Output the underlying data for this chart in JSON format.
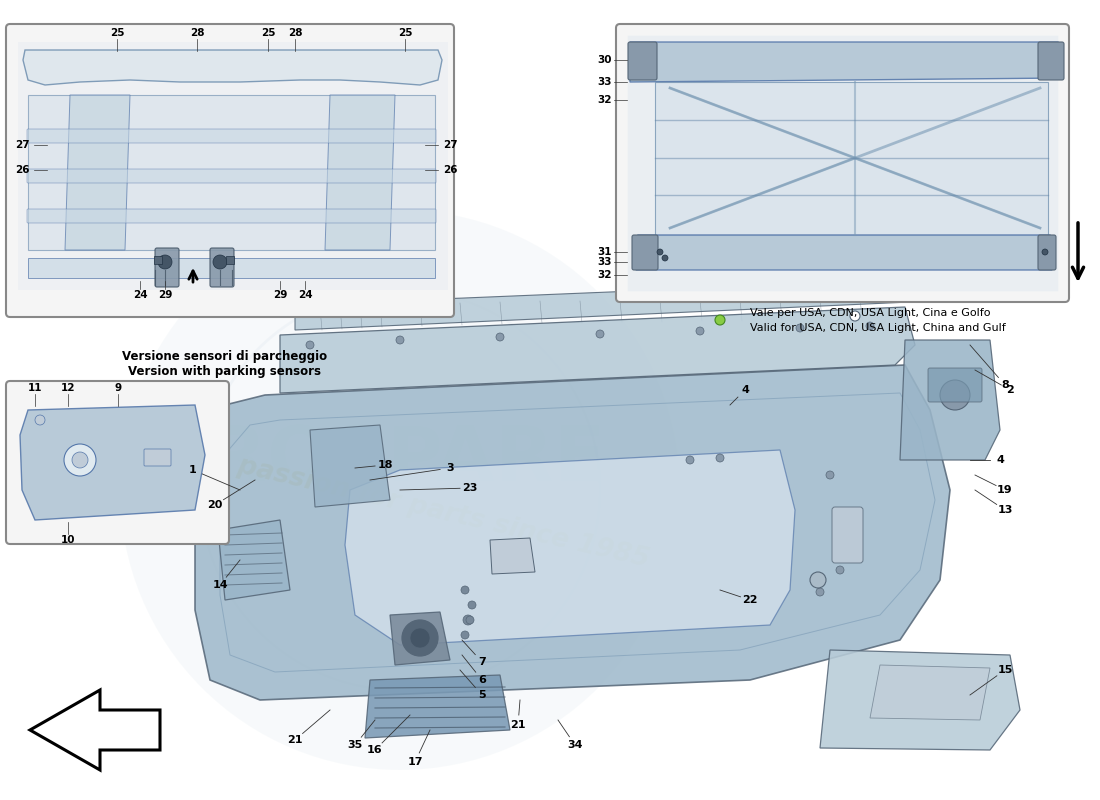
{
  "bg_color": "#ffffff",
  "part_color_light": "#b8ccd8",
  "part_color_mid": "#9ab5c8",
  "part_color_dark": "#7a9ab5",
  "edge_color": "#556677",
  "inset_bg": "#f2f2f2",
  "inset_edge": "#888888",
  "watermark_yellow": "#d4b840",
  "watermark_gray": "#c0ccd8",
  "caption1": "Versione sensori di parcheggio",
  "caption2": "Version with parking sensors",
  "caption_r1": "Vale per USA, CDN, USA Light, Cina e Golfo",
  "caption_r2": "Valid for USA, CDN, USA Light, China and Gulf",
  "fig_w": 11.0,
  "fig_h": 8.0,
  "dpi": 100
}
